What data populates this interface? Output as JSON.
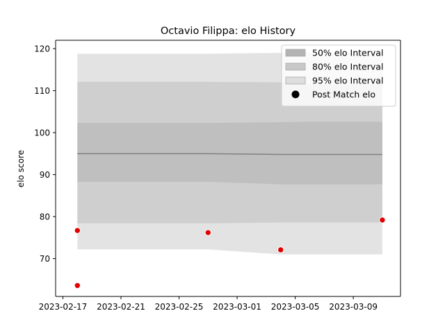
{
  "chart_data": {
    "type": "line",
    "title": "Octavio Filippa: elo History",
    "xlabel": "",
    "ylabel": "elo score",
    "x_ticks": [
      "2023-02-17",
      "2023-02-21",
      "2023-02-25",
      "2023-03-01",
      "2023-03-05",
      "2023-03-09"
    ],
    "y_ticks": [
      70,
      80,
      90,
      100,
      110,
      120
    ],
    "xlim": [
      "2023-02-16T12:00",
      "2023-03-12T06:00"
    ],
    "ylim": [
      61,
      122
    ],
    "grid": false,
    "legend_position": "top-right",
    "mean_line": {
      "dates": [
        "2023-02-18",
        "2023-02-27",
        "2023-03-04",
        "2023-03-06",
        "2023-03-11"
      ],
      "values": [
        95.0,
        95.0,
        94.8,
        94.8,
        94.8
      ],
      "color": "#808080"
    },
    "bands": [
      {
        "name": "95% elo Interval",
        "color": "#e3e3e3",
        "dates": [
          "2023-02-18",
          "2023-02-27",
          "2023-03-04",
          "2023-03-06",
          "2023-03-11"
        ],
        "upper": [
          118.8,
          118.8,
          119.0,
          119.0,
          119.0
        ],
        "lower": [
          72.2,
          72.2,
          71.0,
          71.0,
          71.0
        ]
      },
      {
        "name": "80% elo Interval",
        "color": "#cfcfcf",
        "dates": [
          "2023-02-18",
          "2023-02-27",
          "2023-03-04",
          "2023-03-06",
          "2023-03-11"
        ],
        "upper": [
          112.1,
          112.1,
          112.0,
          111.5,
          111.5
        ],
        "lower": [
          78.4,
          78.4,
          78.6,
          78.6,
          78.6
        ]
      },
      {
        "name": "50% elo Interval",
        "color": "#bfbfbf",
        "dates": [
          "2023-02-18",
          "2023-02-27",
          "2023-03-04",
          "2023-03-06",
          "2023-03-11"
        ],
        "upper": [
          102.3,
          102.3,
          102.5,
          102.6,
          102.6
        ],
        "lower": [
          88.3,
          88.3,
          87.7,
          87.7,
          87.7
        ]
      }
    ],
    "points": {
      "name": "Post Match elo",
      "color": "#e00000",
      "dates": [
        "2023-02-18",
        "2023-02-18",
        "2023-02-27",
        "2023-03-04",
        "2023-03-11"
      ],
      "values": [
        76.7,
        63.6,
        76.2,
        72.1,
        79.2
      ]
    },
    "legend": [
      {
        "label": "50% elo Interval",
        "kind": "patch",
        "color": "#b3b3b3"
      },
      {
        "label": "80% elo Interval",
        "kind": "patch",
        "color": "#c8c8c8"
      },
      {
        "label": "95% elo Interval",
        "kind": "patch",
        "color": "#dedede"
      },
      {
        "label": "Post Match elo",
        "kind": "marker",
        "color": "#000000"
      }
    ]
  }
}
